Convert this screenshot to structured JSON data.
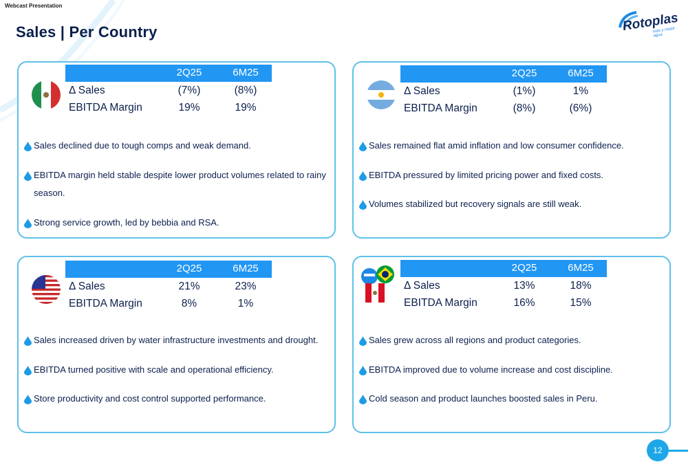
{
  "header": {
    "label": "Webcast Presentation",
    "title": "Sales | Per Country"
  },
  "logo": {
    "wordmark": "Rotoplas",
    "tagline": "más y mejor agua"
  },
  "columns": {
    "col1": "2Q25",
    "col2": "6M25"
  },
  "countries": [
    {
      "flag": "mexico-flag",
      "rows": [
        {
          "label": "Δ Sales",
          "v1": "(7%)",
          "v2": "(8%)"
        },
        {
          "label": "EBITDA Margin",
          "v1": "19%",
          "v2": "19%"
        }
      ],
      "bullets": [
        "Sales declined due to tough comps and weak demand.",
        "EBITDA margin held stable despite lower product volumes related to rainy season.",
        "Strong service growth, led by bebbia and RSA."
      ]
    },
    {
      "flag": "argentina-flag",
      "rows": [
        {
          "label": "Δ Sales",
          "v1": "(1%)",
          "v2": "1%"
        },
        {
          "label": "EBITDA Margin",
          "v1": "(8%)",
          "v2": "(6%)"
        }
      ],
      "bullets": [
        "Sales remained flat amid inflation and low consumer confidence.",
        "EBITDA pressured by limited pricing power and fixed costs.",
        "Volumes stabilized but recovery signals are still weak."
      ]
    },
    {
      "flag": "usa-flag",
      "rows": [
        {
          "label": "Δ Sales",
          "v1": "21%",
          "v2": "23%"
        },
        {
          "label": "EBITDA Margin",
          "v1": "8%",
          "v2": "1%"
        }
      ],
      "bullets": [
        "Sales increased driven by water infrastructure investments and drought.",
        "EBITDA turned positive with scale and operational efficiency.",
        "Store productivity and cost control supported performance."
      ]
    },
    {
      "flag": "other-countries-flags",
      "rows": [
        {
          "label": "Δ Sales",
          "v1": "13%",
          "v2": "18%"
        },
        {
          "label": "EBITDA Margin",
          "v1": "16%",
          "v2": "15%"
        }
      ],
      "bullets": [
        "Sales grew across all regions and product categories.",
        "EBITDA improved due to volume increase and cost discipline.",
        "Cold season and product launches boosted sales in Peru."
      ]
    }
  ],
  "page_number": "12",
  "colors": {
    "accent": "#2196f3",
    "border": "#5fc0e8",
    "navy": "#0b1f4d"
  }
}
